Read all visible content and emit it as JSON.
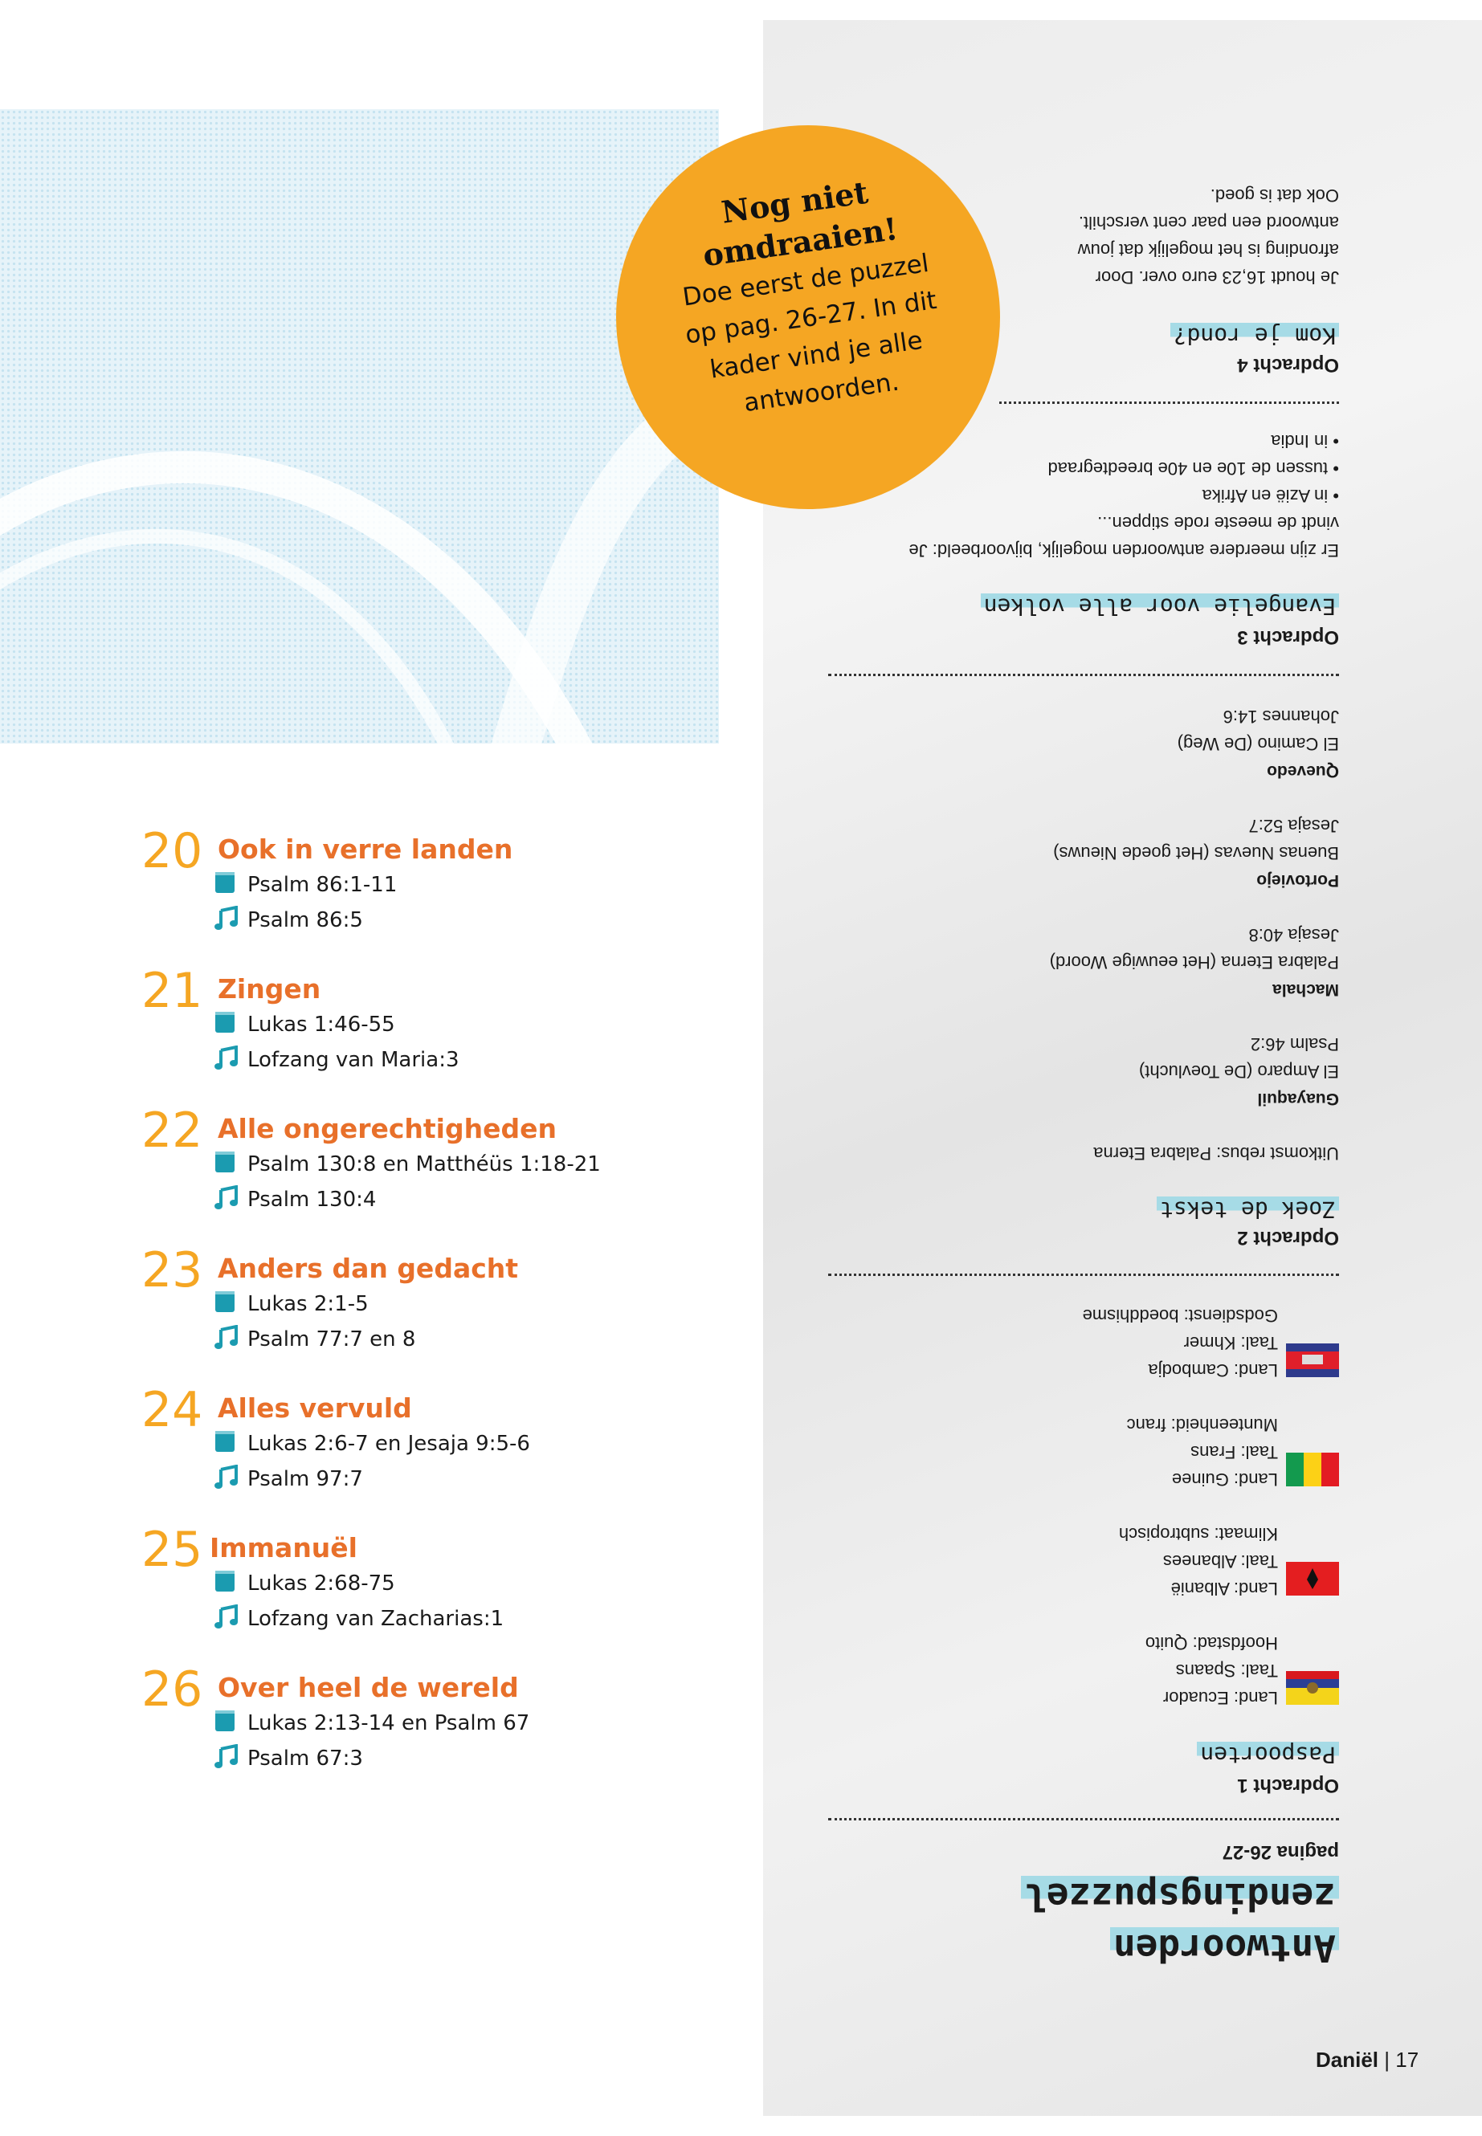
{
  "colors": {
    "orange_number": "#f5a623",
    "orange_title": "#e8702a",
    "teal_icon": "#1b9bb0",
    "highlight": "#a6dbe6",
    "circle": "#f5a623"
  },
  "callout": {
    "title_line1": "Nog niet",
    "title_line2": "omdraaien!",
    "body_line1": "Doe eerst de puzzel",
    "body_line2": "op pag. 26-27. In dit",
    "body_line3": "kader vind je alle",
    "body_line4": "antwoorden."
  },
  "schedule": [
    {
      "number": "20",
      "title": "Ook in verre landen",
      "reading": "Psalm 86:1-11",
      "song": "Psalm 86:5"
    },
    {
      "number": "21",
      "title": "Zingen",
      "reading": "Lukas 1:46-55",
      "song": "Lofzang van Maria:3"
    },
    {
      "number": "22",
      "title": "Alle ongerechtigheden",
      "reading": "Psalm 130:8 en Matthéüs 1:18-21",
      "song": "Psalm 130:4"
    },
    {
      "number": "23",
      "title": "Anders dan gedacht",
      "reading": "Lukas 2:1-5",
      "song": "Psalm 77:7 en 8"
    },
    {
      "number": "24",
      "title": "Alles vervuld",
      "reading": "Lukas 2:6-7 en Jesaja 9:5-6",
      "song": "Psalm 97:7"
    },
    {
      "number": "25",
      "title": "Immanuël",
      "reading": "Lukas 2:68-75",
      "song": "Lofzang van Zacharias:1"
    },
    {
      "number": "26",
      "title": "Over heel de wereld",
      "reading": "Lukas 2:13-14 en Psalm 67",
      "song": "Psalm 67:3"
    }
  ],
  "answers": {
    "title_line1": "Antwoorden",
    "title_line2": "zendingspuzzel",
    "pages": "pagina 26-27",
    "o1": {
      "label": "Opdracht 1",
      "title": "Paspoorten",
      "countries": [
        {
          "flag": "ecuador",
          "line1": "Land: Ecuador",
          "line2": "Taal: Spaans",
          "line3": "Hoofdstad: Quito"
        },
        {
          "flag": "albania",
          "line1": "Land: Albanië",
          "line2": "Taal: Albanees",
          "line3": "Klimaat: subtropisch"
        },
        {
          "flag": "guinea",
          "line1": "Land: Guinee",
          "line2": "Taal: Frans",
          "line3": "Munteenheid: franc"
        },
        {
          "flag": "cambodia",
          "line1": "Land: Cambodja",
          "line2": "Taal: Khmer",
          "line3": "Godsdienst: boeddhisme"
        }
      ]
    },
    "o2": {
      "label": "Opdracht 2",
      "title": "Zoek de tekst",
      "rebus": "Uitkomst rebus: Palabra Eterna",
      "cities": [
        {
          "city": "Guayaquil",
          "line1": "El Amparo (De Toevlucht)",
          "line2": "Psalm 46:2"
        },
        {
          "city": "Machala",
          "line1": "Palabra Eterna (Het eeuwige Woord)",
          "line2": "Jesaja 40:8"
        },
        {
          "city": "Portoviejo",
          "line1": "Buenas Nuevas (Het goede Nieuws)",
          "line2": "Jesaja 52:7"
        },
        {
          "city": "Quevedo",
          "line1": "El Camino (De Weg)",
          "line2": "Johannes 14:6"
        }
      ]
    },
    "o3": {
      "label": "Opdracht 3",
      "title": "Evangelie voor alle volken",
      "line1": "Er zijn meerdere antwoorden mogelijk, bijvoorbeeld: Je",
      "line2": "vindt de meeste rode stippen...",
      "bullets": [
        "in Azië en Afrika",
        "tussen de 10e en 40e breedtegraad",
        "in India"
      ]
    },
    "o4": {
      "label": "Opdracht 4",
      "title": "Kom je rond?",
      "line1": "Je houdt 16,23 euro over. Door",
      "line2": "afronding is het mogelijk dat jouw",
      "line3": "antwoord een paar cent verschilt.",
      "line4": "Ook dat is goed."
    }
  },
  "footer": {
    "book": "Daniël",
    "separator": "|",
    "page": "17"
  }
}
